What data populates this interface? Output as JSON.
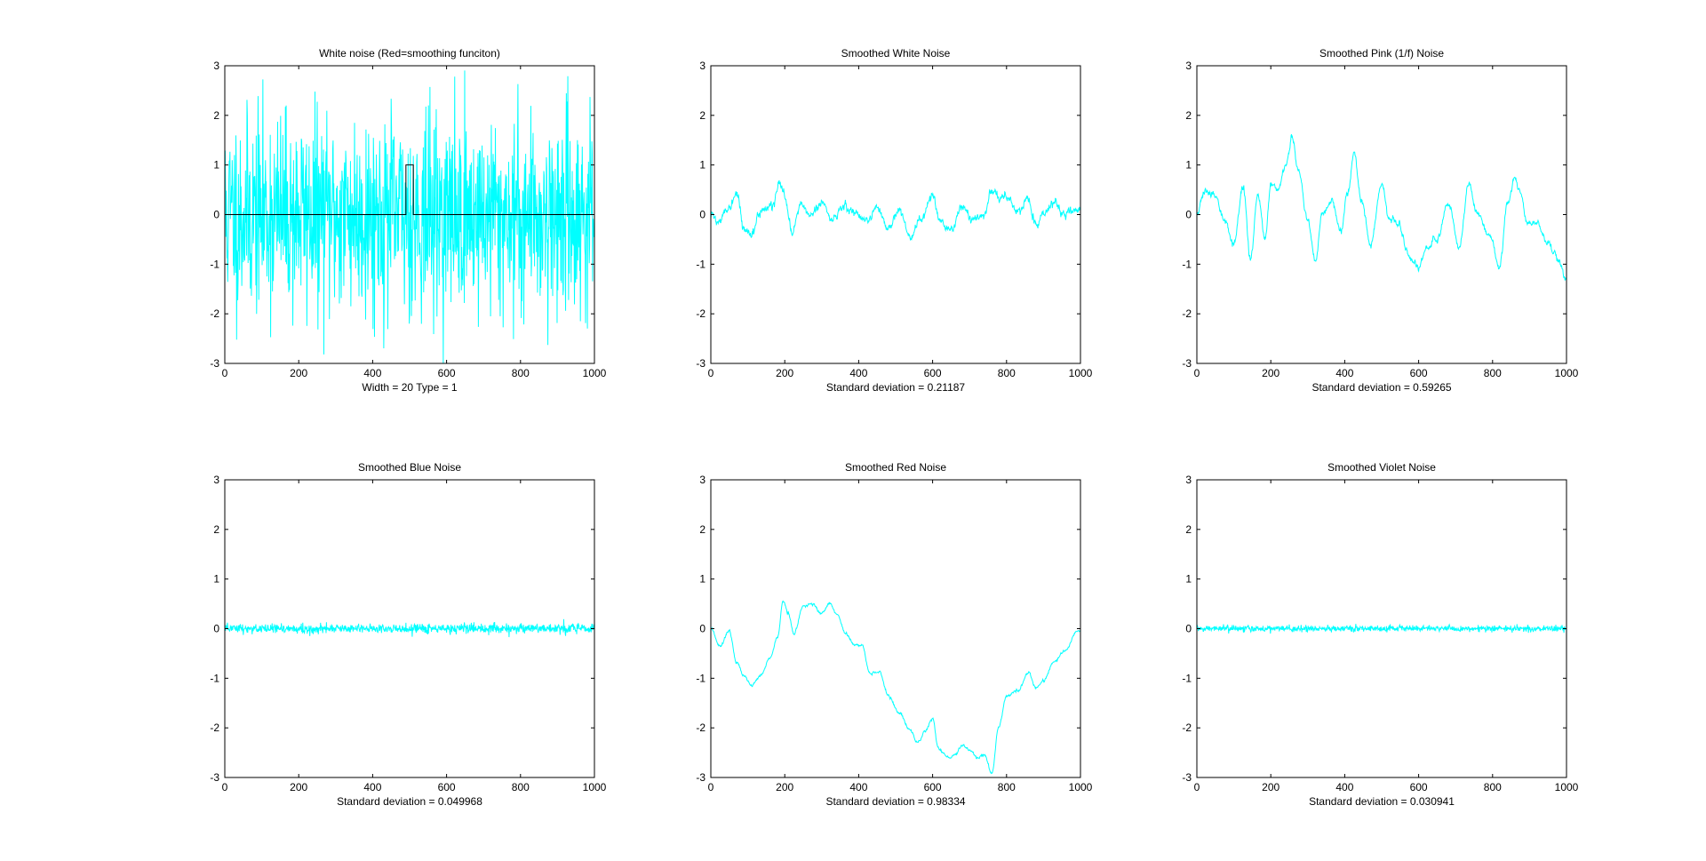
{
  "figure": {
    "background": "#ffffff",
    "axes_color": "#000000",
    "trace_color": "#00ffff",
    "kernel_color": "#000000"
  },
  "chart_data": [
    {
      "type": "line",
      "title": "White noise (Red=smoothing funciton)",
      "xlabel": "Width = 20   Type = 1",
      "xlim": [
        0,
        1000
      ],
      "ylim": [
        -3,
        3
      ],
      "xticks": [
        0,
        200,
        400,
        600,
        800,
        1000
      ],
      "yticks": [
        -3,
        -2,
        -1,
        0,
        1,
        2,
        3
      ],
      "grid": false,
      "series": [
        {
          "kind": "noise",
          "n": 1000,
          "std": 1.0,
          "clip": 3,
          "seed": 11
        },
        {
          "kind": "kernel",
          "x": [
            0,
            490,
            490,
            510,
            510,
            1000
          ],
          "y": [
            0,
            0,
            1,
            1,
            0,
            0
          ]
        }
      ]
    },
    {
      "type": "line",
      "title": "Smoothed White Noise",
      "xlabel": "Standard deviation = 0.21187",
      "xlim": [
        0,
        1000
      ],
      "ylim": [
        -3,
        3
      ],
      "xticks": [
        0,
        200,
        400,
        600,
        800,
        1000
      ],
      "yticks": [
        -3,
        -2,
        -1,
        0,
        1,
        2,
        3
      ],
      "grid": false,
      "series": [
        {
          "kind": "curve",
          "n": 1000,
          "noise": 0.09,
          "seed": 22,
          "x": [
            0,
            20,
            50,
            70,
            90,
            110,
            140,
            170,
            185,
            200,
            220,
            240,
            270,
            300,
            330,
            360,
            390,
            420,
            450,
            480,
            510,
            540,
            570,
            600,
            620,
            650,
            680,
            710,
            740,
            760,
            780,
            800,
            830,
            860,
            880,
            900,
            930,
            960,
            990
          ],
          "y": [
            0.0,
            -0.15,
            0.1,
            0.45,
            -0.3,
            -0.35,
            0.1,
            0.2,
            0.6,
            0.4,
            -0.35,
            0.2,
            0.0,
            0.25,
            -0.1,
            0.15,
            0.05,
            -0.1,
            0.1,
            -0.3,
            0.05,
            -0.45,
            -0.1,
            0.4,
            -0.15,
            -0.3,
            0.2,
            -0.1,
            -0.05,
            0.55,
            0.35,
            0.4,
            0.05,
            0.3,
            -0.25,
            0.05,
            0.25,
            0.0,
            0.1
          ]
        }
      ]
    },
    {
      "type": "line",
      "title": "Smoothed Pink (1/f) Noise",
      "xlabel": "Standard deviation = 0.59265",
      "xlim": [
        0,
        1000
      ],
      "ylim": [
        -3,
        3
      ],
      "xticks": [
        0,
        200,
        400,
        600,
        800,
        1000
      ],
      "yticks": [
        -3,
        -2,
        -1,
        0,
        1,
        2,
        3
      ],
      "grid": false,
      "series": [
        {
          "kind": "curve",
          "n": 1000,
          "noise": 0.07,
          "seed": 33,
          "x": [
            0,
            20,
            45,
            75,
            100,
            125,
            145,
            165,
            185,
            200,
            220,
            240,
            258,
            275,
            300,
            320,
            340,
            365,
            390,
            410,
            425,
            445,
            470,
            500,
            520,
            545,
            575,
            600,
            620,
            650,
            680,
            710,
            735,
            760,
            790,
            820,
            840,
            860,
            875,
            895,
            920,
            950,
            980,
            1000
          ],
          "y": [
            0.0,
            0.45,
            0.4,
            -0.1,
            -0.6,
            0.55,
            -0.9,
            0.4,
            -0.45,
            0.6,
            0.5,
            1.0,
            1.55,
            0.9,
            -0.1,
            -0.9,
            0.0,
            0.3,
            -0.3,
            0.5,
            1.25,
            0.3,
            -0.6,
            0.6,
            -0.1,
            -0.2,
            -0.85,
            -1.05,
            -0.7,
            -0.5,
            0.25,
            -0.65,
            0.6,
            0.0,
            -0.4,
            -1.05,
            0.2,
            0.75,
            0.45,
            -0.2,
            -0.15,
            -0.6,
            -0.95,
            -1.3
          ]
        }
      ]
    },
    {
      "type": "line",
      "title": "Smoothed Blue Noise",
      "xlabel": "Standard deviation = 0.049968",
      "xlim": [
        0,
        1000
      ],
      "ylim": [
        -3,
        3
      ],
      "xticks": [
        0,
        200,
        400,
        600,
        800,
        1000
      ],
      "yticks": [
        -3,
        -2,
        -1,
        0,
        1,
        2,
        3
      ],
      "grid": false,
      "series": [
        {
          "kind": "noise",
          "n": 1000,
          "std": 0.05,
          "clip": 0.2,
          "seed": 44
        }
      ]
    },
    {
      "type": "line",
      "title": "Smoothed Red Noise",
      "xlabel": "Standard deviation = 0.98334",
      "xlim": [
        0,
        1000
      ],
      "ylim": [
        -3,
        3
      ],
      "xticks": [
        0,
        200,
        400,
        600,
        800,
        1000
      ],
      "yticks": [
        -3,
        -2,
        -1,
        0,
        1,
        2,
        3
      ],
      "grid": false,
      "series": [
        {
          "kind": "curve",
          "n": 1000,
          "noise": 0.03,
          "seed": 55,
          "x": [
            0,
            25,
            50,
            70,
            90,
            110,
            135,
            160,
            180,
            195,
            210,
            225,
            250,
            275,
            300,
            320,
            345,
            365,
            385,
            410,
            430,
            455,
            480,
            510,
            540,
            560,
            580,
            600,
            615,
            640,
            660,
            680,
            700,
            720,
            740,
            760,
            780,
            800,
            830,
            860,
            880,
            900,
            930,
            960,
            990
          ],
          "y": [
            0.0,
            -0.35,
            -0.05,
            -0.7,
            -0.95,
            -1.15,
            -0.95,
            -0.6,
            -0.2,
            0.55,
            0.3,
            -0.1,
            0.45,
            0.5,
            0.3,
            0.5,
            0.25,
            -0.1,
            -0.3,
            -0.35,
            -0.9,
            -0.85,
            -1.35,
            -1.7,
            -2.05,
            -2.3,
            -2.05,
            -1.8,
            -2.4,
            -2.6,
            -2.55,
            -2.35,
            -2.45,
            -2.6,
            -2.55,
            -2.9,
            -1.95,
            -1.35,
            -1.25,
            -0.9,
            -1.2,
            -1.05,
            -0.65,
            -0.45,
            -0.05
          ]
        }
      ]
    },
    {
      "type": "line",
      "title": "Smoothed Violet Noise",
      "xlabel": "Standard deviation = 0.030941",
      "xlim": [
        0,
        1000
      ],
      "ylim": [
        -3,
        3
      ],
      "xticks": [
        0,
        200,
        400,
        600,
        800,
        1000
      ],
      "yticks": [
        -3,
        -2,
        -1,
        0,
        1,
        2,
        3
      ],
      "grid": false,
      "series": [
        {
          "kind": "noise",
          "n": 1000,
          "std": 0.031,
          "clip": 0.15,
          "seed": 66
        }
      ]
    }
  ]
}
